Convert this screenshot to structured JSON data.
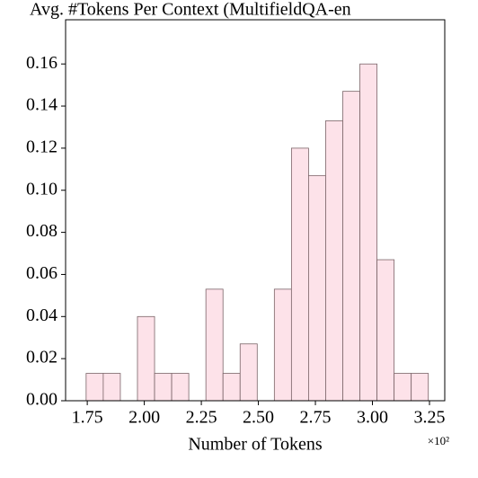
{
  "chart_data": {
    "type": "histogram",
    "title": "Avg. #Tokens Per Context (MultifieldQA-en",
    "xlabel": "Number of Tokens",
    "x_offset_label": "×10²",
    "bins": [
      1.745,
      1.82,
      1.895,
      1.97,
      2.045,
      2.12,
      2.195,
      2.27,
      2.345,
      2.42,
      2.495,
      2.57,
      2.645,
      2.72,
      2.795,
      2.87,
      2.945,
      3.02,
      3.095,
      3.17,
      3.245
    ],
    "values": [
      0.013,
      0.013,
      0,
      0.04,
      0.013,
      0.013,
      0,
      0.053,
      0.013,
      0.027,
      0,
      0.053,
      0.12,
      0.107,
      0.133,
      0.147,
      0.16,
      0.067,
      0.013,
      0.013
    ],
    "color": "#fde2e9",
    "edgecolor": "#7a6468",
    "xlim": [
      1.655,
      3.317
    ],
    "ylim": [
      0,
      0.181
    ],
    "xticks": [
      1.75,
      {
        "value": 2,
        "label": "2.00"
      },
      2.25,
      {
        "value": 2.5,
        "label": "2.50"
      },
      2.75,
      {
        "value": 3,
        "label": "3.00"
      },
      3.25
    ],
    "yticks": [
      {
        "value": 0,
        "label": "0.00"
      },
      0.02,
      0.04,
      0.06,
      0.08,
      {
        "value": 0.1,
        "label": "0.10"
      },
      0.12,
      0.14,
      0.16
    ]
  }
}
